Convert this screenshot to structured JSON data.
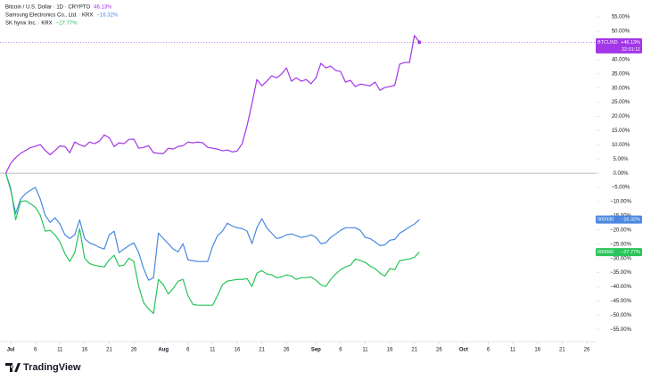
{
  "chart_data": {
    "type": "line",
    "watermark": "TradingView",
    "x": [
      "Jun 30",
      "Jul 1",
      "Jul 2",
      "Jul 3",
      "Jul 4",
      "Jul 5",
      "Jul 6",
      "Jul 7",
      "Jul 8",
      "Jul 9",
      "Jul 10",
      "Jul 11",
      "Jul 12",
      "Jul 13",
      "Jul 14",
      "Jul 15",
      "Jul 16",
      "Jul 17",
      "Jul 18",
      "Jul 19",
      "Jul 20",
      "Jul 21",
      "Jul 22",
      "Jul 23",
      "Jul 24",
      "Jul 25",
      "Jul 26",
      "Jul 27",
      "Jul 28",
      "Jul 29",
      "Jul 30",
      "Jul 31",
      "Aug 1",
      "Aug 2",
      "Aug 3",
      "Aug 4",
      "Aug 5",
      "Aug 6",
      "Aug 7",
      "Aug 8",
      "Aug 9",
      "Aug 10",
      "Aug 11",
      "Aug 12",
      "Aug 13",
      "Aug 14",
      "Aug 15",
      "Aug 16",
      "Aug 17",
      "Aug 18",
      "Aug 19",
      "Aug 20",
      "Aug 21",
      "Aug 22",
      "Aug 23",
      "Aug 24",
      "Aug 25",
      "Aug 26",
      "Aug 27",
      "Aug 28",
      "Aug 29",
      "Aug 30",
      "Aug 31",
      "Sep 1",
      "Sep 2",
      "Sep 3",
      "Sep 4",
      "Sep 5",
      "Sep 6",
      "Sep 7",
      "Sep 8",
      "Sep 9",
      "Sep 10",
      "Sep 11",
      "Sep 12",
      "Sep 13",
      "Sep 14",
      "Sep 15",
      "Sep 16",
      "Sep 17",
      "Sep 18",
      "Sep 19",
      "Sep 20",
      "Sep 21",
      "Sep 22"
    ],
    "series": [
      {
        "name": "Bitcoin / U.S. Dollar · 1D · CRYPTO",
        "legend_value": "46.13%",
        "symbol": "BTCUSD",
        "last_label": "+46.13%",
        "time": "22:01:11",
        "color": "#a336e8",
        "values": [
          0,
          3.5,
          5.5,
          7,
          8,
          9,
          9.5,
          10.1,
          8,
          6.5,
          8,
          9.6,
          9.4,
          7.2,
          11,
          10,
          9.4,
          11,
          10.4,
          11.3,
          13.5,
          12.5,
          9.4,
          10.7,
          10.4,
          11.9,
          12,
          8.8,
          9.1,
          9.7,
          7.2,
          7,
          6.9,
          8.8,
          8.5,
          9.4,
          9.7,
          11,
          10.7,
          11,
          10.7,
          9.1,
          8.8,
          8.5,
          7.9,
          8.2,
          7.5,
          7.8,
          10.4,
          16.7,
          24.5,
          33,
          30.8,
          32.4,
          34.3,
          33.6,
          34.9,
          37.1,
          32.4,
          33.6,
          32.4,
          33,
          31.5,
          33.6,
          38.7,
          37.1,
          37.7,
          36.2,
          35.8,
          32.1,
          32.7,
          30.5,
          31.4,
          31.1,
          30.8,
          32.1,
          29.2,
          30.2,
          30.5,
          31,
          38.4,
          39,
          39,
          48.5,
          46.13
        ]
      },
      {
        "name": "Samsung Electronics Co., Ltd. · KRX",
        "legend_value": "−16.32%",
        "symbol": "005930",
        "last_label": "−16.32%",
        "color": "#4a88e0",
        "values": [
          0,
          -6,
          -14.2,
          -9.1,
          -7.2,
          -6,
          -5,
          -9.1,
          -14.8,
          -17.3,
          -15.7,
          -17.9,
          -21.7,
          -23,
          -21.7,
          -16.4,
          -23,
          -24.5,
          -25.2,
          -26.1,
          -26.7,
          -21.7,
          -20.4,
          -28,
          -26.7,
          -25.5,
          -24.5,
          -28,
          -33.6,
          -37.7,
          -36.8,
          -21.1,
          -23,
          -24.8,
          -26.7,
          -27.7,
          -24.8,
          -30.5,
          -30.8,
          -31.1,
          -31.1,
          -31.1,
          -25.8,
          -22,
          -20.4,
          -17.6,
          -18.6,
          -19.2,
          -19.5,
          -20.4,
          -24.8,
          -19.2,
          -16,
          -19.2,
          -21.1,
          -23,
          -22.6,
          -21.7,
          -21.4,
          -22,
          -22.6,
          -22.3,
          -21.7,
          -22.6,
          -24.8,
          -24.5,
          -22.6,
          -21.4,
          -20.1,
          -19.2,
          -19.2,
          -19.2,
          -20.1,
          -22.6,
          -23,
          -24.2,
          -25.5,
          -25.2,
          -23.6,
          -23.3,
          -21.1,
          -20.1,
          -18.9,
          -17.9,
          -16.32
        ]
      },
      {
        "name": "SK hynix Inc. · KRX",
        "legend_value": "−27.77%",
        "symbol": "000660",
        "last_label": "−27.77%",
        "color": "#29c45a",
        "values": [
          0,
          -5.3,
          -16.4,
          -10,
          -9.7,
          -10.7,
          -12,
          -14.8,
          -20.4,
          -20.1,
          -21.7,
          -24.2,
          -28.3,
          -31.1,
          -28,
          -19.5,
          -29.9,
          -31.8,
          -32.4,
          -32.7,
          -33,
          -30.5,
          -28.9,
          -32.7,
          -32.4,
          -29.9,
          -31.1,
          -39.9,
          -45.6,
          -47.8,
          -49.4,
          -37.4,
          -39.3,
          -42.5,
          -40.6,
          -38,
          -37.4,
          -43.1,
          -46.2,
          -46.5,
          -46.5,
          -46.5,
          -46.5,
          -43.1,
          -39.3,
          -38,
          -37.7,
          -37.4,
          -37.4,
          -37.1,
          -39.9,
          -35.2,
          -34.3,
          -35.5,
          -35.8,
          -36.8,
          -36.5,
          -35.8,
          -36.2,
          -37.4,
          -36.8,
          -36.8,
          -36.5,
          -37.7,
          -39.3,
          -39.9,
          -37.4,
          -35.5,
          -34,
          -33,
          -32.4,
          -30.2,
          -30.8,
          -31.4,
          -32.7,
          -33.6,
          -35.2,
          -36.2,
          -33.6,
          -34,
          -30.8,
          -30.5,
          -30.2,
          -29.6,
          -27.77
        ]
      }
    ],
    "xlim": [
      "Jun 29",
      "Oct 28"
    ],
    "xticks": [
      {
        "value": "Jul 1",
        "label": "Jul"
      },
      {
        "value": "Jul 6",
        "label": "6"
      },
      {
        "value": "Jul 11",
        "label": "11"
      },
      {
        "value": "Jul 16",
        "label": "16"
      },
      {
        "value": "Jul 21",
        "label": "21"
      },
      {
        "value": "Jul 26",
        "label": "26"
      },
      {
        "value": "Aug 1",
        "label": "Aug"
      },
      {
        "value": "Aug 6",
        "label": "6"
      },
      {
        "value": "Aug 11",
        "label": "11"
      },
      {
        "value": "Aug 16",
        "label": "16"
      },
      {
        "value": "Aug 21",
        "label": "21"
      },
      {
        "value": "Aug 26",
        "label": "26"
      },
      {
        "value": "Sep 1",
        "label": "Sep"
      },
      {
        "value": "Sep 6",
        "label": "6"
      },
      {
        "value": "Sep 11",
        "label": "11"
      },
      {
        "value": "Sep 16",
        "label": "16"
      },
      {
        "value": "Sep 21",
        "label": "21"
      },
      {
        "value": "Sep 26",
        "label": "26"
      },
      {
        "value": "Oct 1",
        "label": "Oct"
      },
      {
        "value": "Oct 6",
        "label": "6"
      },
      {
        "value": "Oct 11",
        "label": "11"
      },
      {
        "value": "Oct 16",
        "label": "16"
      },
      {
        "value": "Oct 21",
        "label": "21"
      },
      {
        "value": "Oct 26",
        "label": "26"
      }
    ],
    "ylim": [
      -59,
      61
    ],
    "yticks": [
      {
        "value": 55,
        "label": "55.00%"
      },
      {
        "value": 50,
        "label": "50.00%"
      },
      {
        "value": 45,
        "label": "45.00%"
      },
      {
        "value": 40,
        "label": "40.00%"
      },
      {
        "value": 35,
        "label": "35.00%"
      },
      {
        "value": 30,
        "label": "30.00%"
      },
      {
        "value": 25,
        "label": "25.00%"
      },
      {
        "value": 20,
        "label": "20.00%"
      },
      {
        "value": 15,
        "label": "15.00%"
      },
      {
        "value": 10,
        "label": "10.00%"
      },
      {
        "value": 5,
        "label": "5.00%"
      },
      {
        "value": 0,
        "label": "0.00%"
      },
      {
        "value": -5,
        "label": "−5.00%"
      },
      {
        "value": -10,
        "label": "−10.00%"
      },
      {
        "value": -15,
        "label": "−15.00%"
      },
      {
        "value": -20,
        "label": "−20.00%"
      },
      {
        "value": -25,
        "label": "−25.00%"
      },
      {
        "value": -30,
        "label": "−30.00%"
      },
      {
        "value": -35,
        "label": "−35.00%"
      },
      {
        "value": -40,
        "label": "−40.00%"
      },
      {
        "value": -45,
        "label": "−45.00%"
      },
      {
        "value": -50,
        "label": "−50.00%"
      },
      {
        "value": -55,
        "label": "−55.00%"
      }
    ]
  }
}
